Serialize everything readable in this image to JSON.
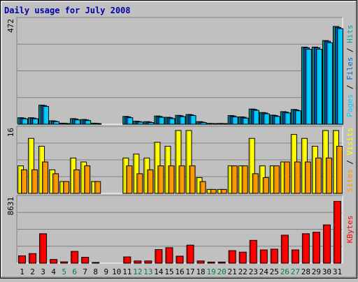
{
  "chart_data": {
    "type": "bar",
    "title": "Daily usage for July 2008",
    "categories": [
      "1",
      "2",
      "3",
      "4",
      "5",
      "6",
      "7",
      "8",
      "9",
      "10",
      "11",
      "12",
      "13",
      "14",
      "15",
      "16",
      "17",
      "18",
      "19",
      "20",
      "21",
      "22",
      "23",
      "24",
      "25",
      "26",
      "27",
      "28",
      "29",
      "30",
      "31"
    ],
    "weekend_days": [
      "5",
      "6",
      "12",
      "13",
      "19",
      "20",
      "26",
      "27"
    ],
    "colors": {
      "title": "#0000aa",
      "axis_text": "#000000",
      "weekday": "#000000",
      "weekend": "#008040",
      "pages": "#00ccff",
      "files": "#0066dd",
      "hits": "#00aa99",
      "visits": "#ffff00",
      "sites": "#ff9900",
      "kbytes": "#ff0000",
      "background": "#c0c0c0"
    },
    "panels": [
      {
        "id": "top",
        "max_label": "472",
        "ymax": 472,
        "series": [
          {
            "name": "Hits",
            "color": "#00aa99",
            "values": [
              30,
              30,
              88,
              16,
              5,
              26,
              22,
              5,
              0,
              0,
              36,
              14,
              12,
              38,
              32,
              41,
              45,
              12,
              4,
              4,
              40,
              34,
              70,
              54,
              42,
              58,
              68,
              355,
              355,
              385,
              450
            ]
          },
          {
            "name": "Files",
            "color": "#0066dd",
            "values": [
              28,
              28,
              86,
              14,
              4,
              24,
              20,
              4,
              0,
              0,
              34,
              12,
              10,
              36,
              30,
              39,
              43,
              10,
              3,
              3,
              38,
              32,
              68,
              52,
              40,
              56,
              66,
              352,
              352,
              382,
              445
            ]
          },
          {
            "name": "Pages",
            "color": "#00ccff",
            "values": [
              25,
              25,
              82,
              12,
              3,
              20,
              17,
              3,
              0,
              0,
              30,
              10,
              8,
              32,
              26,
              35,
              40,
              8,
              2,
              2,
              34,
              28,
              64,
              48,
              36,
              52,
              62,
              345,
              345,
              375,
              440
            ]
          }
        ],
        "right_label": [
          {
            "text": "Pages",
            "color": "#00ccff"
          },
          {
            "text": " / ",
            "color": "#000000"
          },
          {
            "text": "Files",
            "color": "#0066dd"
          },
          {
            "text": " / ",
            "color": "#000000"
          },
          {
            "text": "Hits",
            "color": "#00aa99"
          }
        ]
      },
      {
        "id": "mid",
        "max_label": "16",
        "ymax": 16,
        "series": [
          {
            "name": "Visits",
            "color": "#ffff00",
            "values": [
              7,
              14,
              12,
              6,
              3,
              9,
              8,
              3,
              0,
              0,
              9,
              10,
              9,
              13,
              12,
              16,
              16,
              4,
              1,
              1,
              7,
              7,
              14,
              7,
              7,
              8,
              15,
              14,
              12,
              16,
              16
            ]
          },
          {
            "name": "Sites",
            "color": "#ff9900",
            "values": [
              6,
              6,
              8,
              5,
              3,
              6,
              7,
              3,
              0,
              0,
              7,
              5,
              6,
              7,
              7,
              7,
              7,
              3,
              1,
              1,
              7,
              7,
              5,
              4,
              7,
              8,
              8,
              8,
              9,
              9,
              12
            ]
          }
        ],
        "right_label": [
          {
            "text": "Sites",
            "color": "#ff9900"
          },
          {
            "text": " / ",
            "color": "#000000"
          },
          {
            "text": "Visits",
            "color": "#ffff00"
          }
        ]
      },
      {
        "id": "bot",
        "max_label": "8631",
        "ymax": 8631,
        "series": [
          {
            "name": "KBytes",
            "color": "#ff0000",
            "values": [
              1000,
              1300,
              4000,
              500,
              180,
              1600,
              800,
              100,
              0,
              0,
              850,
              300,
              300,
              1850,
              2100,
              950,
              2450,
              300,
              150,
              150,
              1700,
              1500,
              3100,
              1800,
              1900,
              3800,
              1800,
              4000,
              4200,
              5200,
              8400
            ]
          }
        ],
        "right_label": [
          {
            "text": "KBytes",
            "color": "#ff0000"
          }
        ]
      }
    ]
  }
}
